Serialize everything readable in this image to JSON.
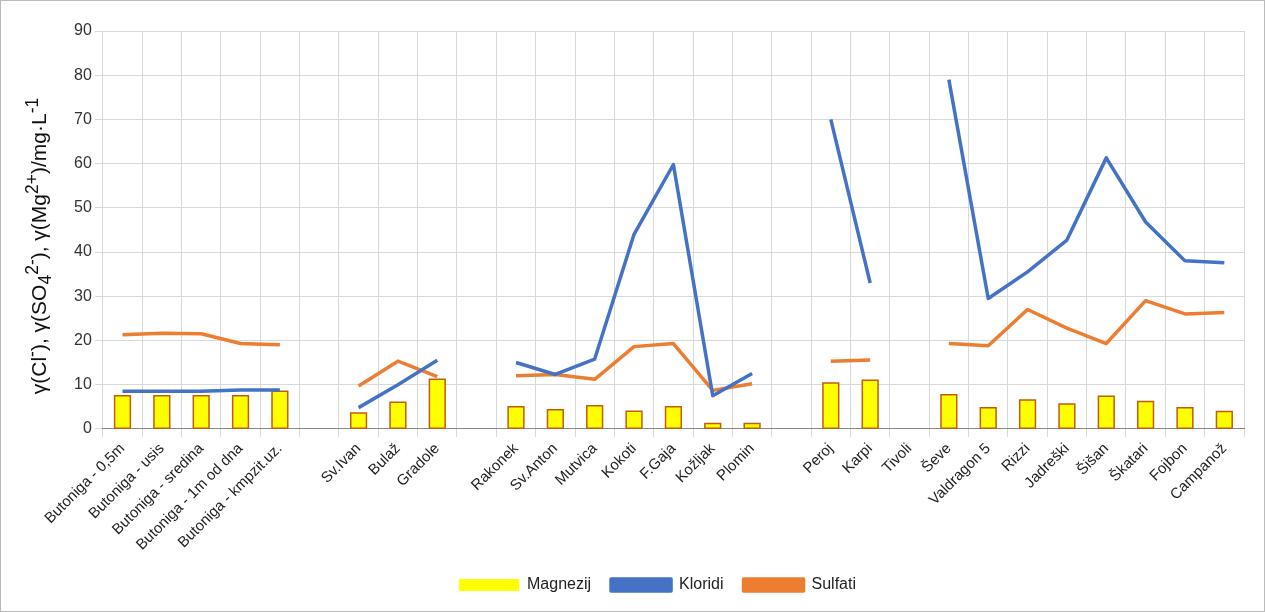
{
  "chart_data": {
    "type": "bar",
    "ylabel": "γ(Cl$^{-}$), γ(SO$_{4}$$^{2-}$), γ(Mg$^{2+}$)/mg·L$^{-1}$",
    "categories": [
      "Butoniga - 0,5m",
      "Butoniga - usis",
      "Butoniga - sredina",
      "Butoniga - 1m od dna",
      "Butoniga - kmpzit.uz.",
      null,
      "Sv.Ivan",
      "Bulaž",
      "Gradole",
      null,
      "Rakonek",
      "Sv.Anton",
      "Mutvica",
      "Kokoti",
      "F.Gaja",
      "Kožljak",
      "Plomin",
      null,
      "Peroj",
      "Karpi",
      "Tivoli",
      "Ševe",
      "Valdragon 5",
      "Rizzi",
      "Jadreški",
      "Šišan",
      "Škatari",
      "Fojbon",
      "Campanož"
    ],
    "series": [
      {
        "name": "Magnezij",
        "color": "#ffff00",
        "values": [
          7.5,
          7.5,
          7.5,
          7.5,
          8.5,
          null,
          3.6,
          6,
          11.2,
          null,
          5,
          4.3,
          5.2,
          4,
          5,
          1.2,
          1.2,
          null,
          10.4,
          11,
          null,
          7.7,
          4.8,
          6.5,
          5.6,
          7.4,
          6.2,
          4.8,
          3.9
        ]
      },
      {
        "name": "Kloridi",
        "type": "line",
        "color": "#4472c4",
        "values": [
          8.5,
          8.5,
          8.5,
          8.8,
          8.8,
          null,
          4.8,
          10,
          15.5,
          null,
          15,
          12.3,
          15.8,
          44,
          59.8,
          7.5,
          12.5,
          null,
          70,
          33,
          null,
          79,
          29.5,
          35.5,
          42.7,
          61.3,
          46.8,
          38,
          37.6
        ]
      },
      {
        "name": "Sulfati",
        "type": "line",
        "color": "#ed7d31",
        "values": [
          21.3,
          21.6,
          21.5,
          19.3,
          19,
          null,
          9.7,
          15.3,
          11.8,
          null,
          12,
          12.3,
          11.2,
          18.6,
          19.3,
          8.7,
          10.2,
          null,
          15.3,
          15.6,
          null,
          19.3,
          18.8,
          27,
          22.8,
          19.3,
          29,
          26,
          26.3
        ]
      }
    ],
    "ylim": [
      0,
      90
    ],
    "yticks": [
      0,
      10,
      20,
      30,
      40,
      50,
      60,
      70,
      80,
      90
    ],
    "grid": true,
    "legend": "bottom",
    "marker": "none",
    "line_style": "solid"
  }
}
